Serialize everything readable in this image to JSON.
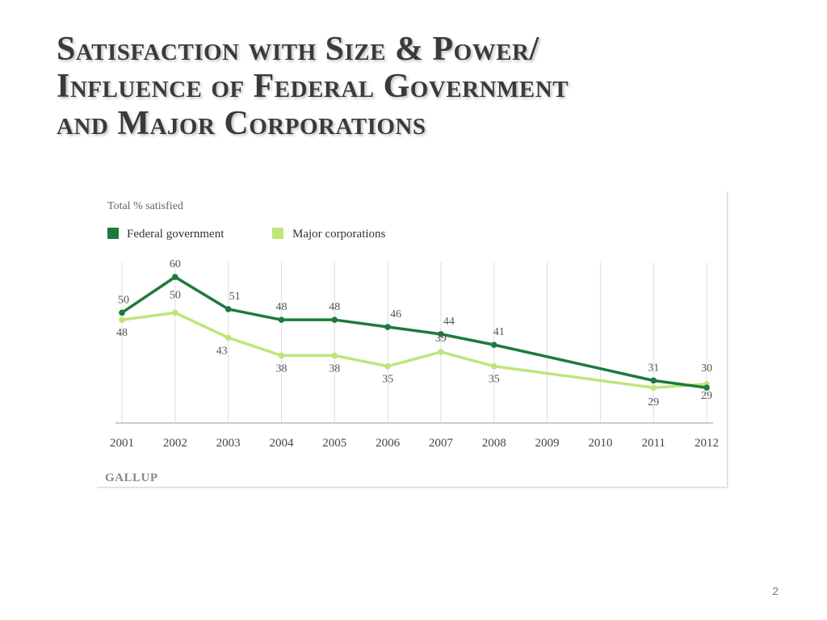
{
  "slide": {
    "title_lines": [
      "Satisfaction with Size & Power/",
      "Influence of Federal Government",
      "and Major Corporations"
    ],
    "page_number": "2"
  },
  "colors": {
    "federal": "#1e7a3c",
    "corporations": "#bfe57a",
    "grid": "#dddddd",
    "text": "#555555"
  },
  "chart_data": {
    "type": "line",
    "subtitle": "Total % satisfied",
    "source": "GALLUP",
    "categories": [
      "2001",
      "2002",
      "2003",
      "2004",
      "2005",
      "2006",
      "2007",
      "2008",
      "2009",
      "2010",
      "2011",
      "2012"
    ],
    "series": [
      {
        "name": "Federal government",
        "color": "#1e7a3c",
        "points": [
          {
            "x": "2001",
            "y": 50
          },
          {
            "x": "2002",
            "y": 60
          },
          {
            "x": "2003",
            "y": 51
          },
          {
            "x": "2004",
            "y": 48
          },
          {
            "x": "2005",
            "y": 48
          },
          {
            "x": "2006",
            "y": 46
          },
          {
            "x": "2007",
            "y": 44
          },
          {
            "x": "2008",
            "y": 41
          },
          {
            "x": "2011",
            "y": 31
          },
          {
            "x": "2012",
            "y": 29
          }
        ]
      },
      {
        "name": "Major corporations",
        "color": "#bfe57a",
        "points": [
          {
            "x": "2001",
            "y": 48
          },
          {
            "x": "2002",
            "y": 50
          },
          {
            "x": "2003",
            "y": 43
          },
          {
            "x": "2004",
            "y": 38
          },
          {
            "x": "2005",
            "y": 38
          },
          {
            "x": "2006",
            "y": 35
          },
          {
            "x": "2007",
            "y": 39
          },
          {
            "x": "2008",
            "y": 35
          },
          {
            "x": "2011",
            "y": 29
          },
          {
            "x": "2012",
            "y": 30
          }
        ]
      }
    ],
    "ylim": [
      20,
      65
    ],
    "grid": "vertical",
    "legend": "top-left"
  }
}
